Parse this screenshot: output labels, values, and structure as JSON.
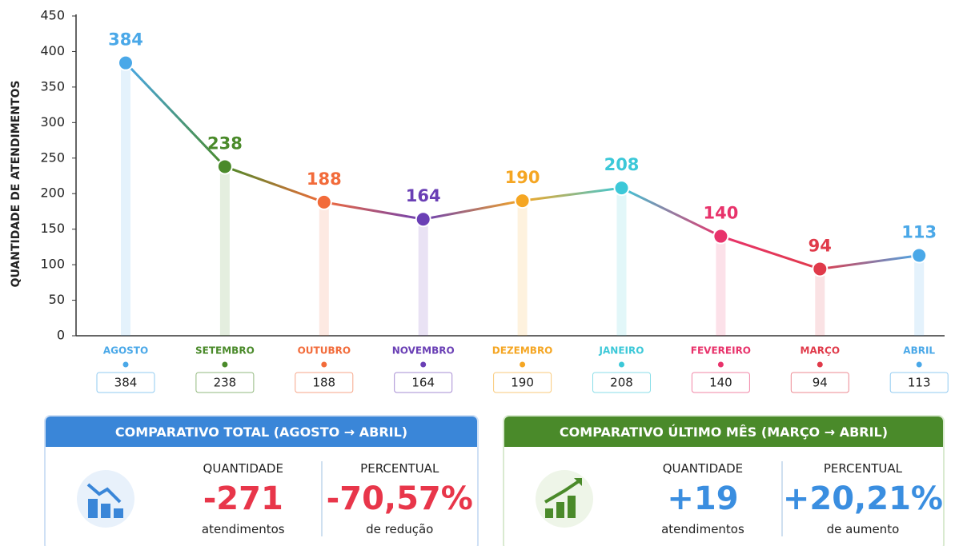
{
  "chart_data": {
    "type": "line",
    "y_label": "QUANTIDADE DE ATENDIMENTOS",
    "categories": [
      "AGOSTO",
      "SETEMBRO",
      "OUTUBRO",
      "NOVEMBRO",
      "DEZEMBRO",
      "JANEIRO",
      "FEVEREIRO",
      "MARÇO",
      "ABRIL"
    ],
    "point_colors": [
      "#4aa8e8",
      "#4a8a2a",
      "#f26b3a",
      "#6a3fb5",
      "#f5a623",
      "#3cc8d8",
      "#e8336b",
      "#e03a4a",
      "#4aa8e8"
    ],
    "series": [
      {
        "values": [
          384,
          238,
          188,
          164,
          190,
          208,
          140,
          94,
          113
        ]
      }
    ],
    "ylim": [
      0,
      450
    ],
    "yticks": [
      0,
      50,
      100,
      150,
      200,
      250,
      300,
      350,
      400,
      450
    ],
    "grid": false
  },
  "panels": [
    {
      "title": "COMPARATIVO TOTAL (AGOSTO → ABRIL)",
      "color": "#3a86d8",
      "value_color": "#e8364a",
      "items": [
        {
          "label": "QUANTIDADE",
          "value": "-271",
          "note": "atendimentos"
        },
        {
          "label": "PERCENTUAL",
          "value": "-70,57%",
          "note": "de redução"
        }
      ]
    },
    {
      "title": "COMPARATIVO ÚLTIMO MÊS (MARÇO → ABRIL)",
      "color": "#4a8a2a",
      "value_color": "#3a8ee0",
      "items": [
        {
          "label": "QUANTIDADE",
          "value": "+19",
          "note": "atendimentos"
        },
        {
          "label": "PERCENTUAL",
          "value": "+20,21%",
          "note": "de aumento"
        }
      ]
    }
  ]
}
